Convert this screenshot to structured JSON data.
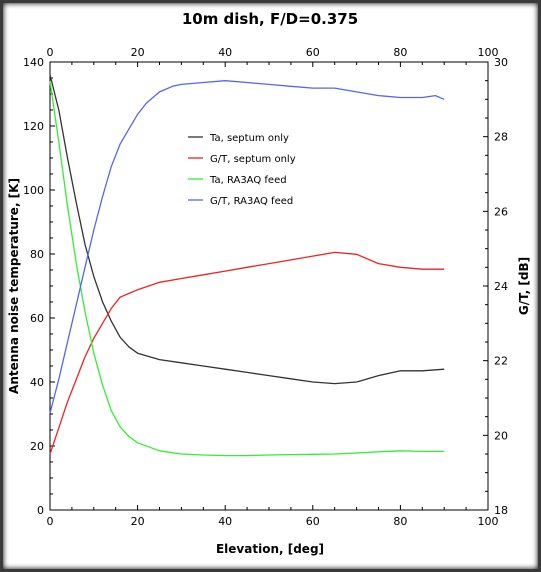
{
  "chart_data": {
    "type": "line",
    "title": "10m dish, F/D=0.375",
    "xlabel": "Elevation, [deg]",
    "ylabel_left": "Antenna noise temperature, [K]",
    "ylabel_right": "G/T, [dB]",
    "xlim": [
      0,
      100
    ],
    "ylim_left": [
      0,
      140
    ],
    "ylim_right": [
      18,
      30
    ],
    "x_ticks": [
      0,
      20,
      40,
      60,
      80,
      100
    ],
    "y_left_ticks": [
      0,
      20,
      40,
      60,
      80,
      100,
      120,
      140
    ],
    "y_right_ticks": [
      18,
      20,
      22,
      24,
      26,
      28,
      30
    ],
    "grid": false,
    "legend_position": "upper-center",
    "series": [
      {
        "name": "Ta, septum only",
        "axis": "left",
        "color": "#333333",
        "x": [
          0,
          2,
          4,
          6,
          8,
          10,
          12,
          14,
          16,
          18,
          20,
          25,
          30,
          35,
          40,
          45,
          50,
          55,
          60,
          65,
          70,
          75,
          80,
          85,
          90
        ],
        "y": [
          136,
          125,
          110,
          96,
          83,
          73,
          65,
          59,
          54,
          51,
          49,
          47,
          46,
          45,
          44,
          43,
          42,
          41,
          40,
          39.5,
          40,
          42,
          43.5,
          43.5,
          44
        ]
      },
      {
        "name": "G/T, septum only",
        "axis": "right",
        "color": "#ee2222",
        "x": [
          0,
          2,
          4,
          6,
          8,
          10,
          12,
          14,
          16,
          18,
          20,
          25,
          30,
          35,
          40,
          45,
          50,
          55,
          60,
          65,
          70,
          75,
          80,
          85,
          90
        ],
        "y": [
          19.5,
          20.2,
          20.9,
          21.5,
          22.1,
          22.6,
          23.0,
          23.4,
          23.7,
          23.8,
          23.9,
          24.1,
          24.2,
          24.3,
          24.4,
          24.5,
          24.6,
          24.7,
          24.8,
          24.9,
          24.85,
          24.6,
          24.5,
          24.45,
          24.45
        ]
      },
      {
        "name": "Ta, RA3AQ feed",
        "axis": "left",
        "color": "#33ee33",
        "x": [
          0,
          2,
          4,
          6,
          8,
          10,
          12,
          14,
          16,
          18,
          20,
          25,
          30,
          35,
          40,
          45,
          50,
          55,
          60,
          65,
          70,
          75,
          80,
          85,
          90
        ],
        "y": [
          134,
          115,
          95,
          77,
          62,
          49,
          39,
          31,
          26,
          23,
          21,
          18.5,
          17.5,
          17.2,
          17,
          17,
          17.2,
          17.3,
          17.4,
          17.5,
          17.8,
          18.2,
          18.5,
          18.3,
          18.3
        ]
      },
      {
        "name": "G/T, RA3AQ feed",
        "axis": "right",
        "color": "#5566ee",
        "x": [
          0,
          2,
          4,
          6,
          8,
          10,
          12,
          14,
          16,
          18,
          20,
          22,
          25,
          28,
          30,
          35,
          40,
          45,
          50,
          55,
          60,
          65,
          70,
          75,
          80,
          85,
          88,
          90
        ],
        "y": [
          20.6,
          21.5,
          22.5,
          23.5,
          24.5,
          25.5,
          26.4,
          27.2,
          27.8,
          28.2,
          28.6,
          28.9,
          29.2,
          29.35,
          29.4,
          29.45,
          29.5,
          29.45,
          29.4,
          29.35,
          29.3,
          29.3,
          29.2,
          29.1,
          29.05,
          29.05,
          29.1,
          29.0
        ]
      }
    ]
  }
}
